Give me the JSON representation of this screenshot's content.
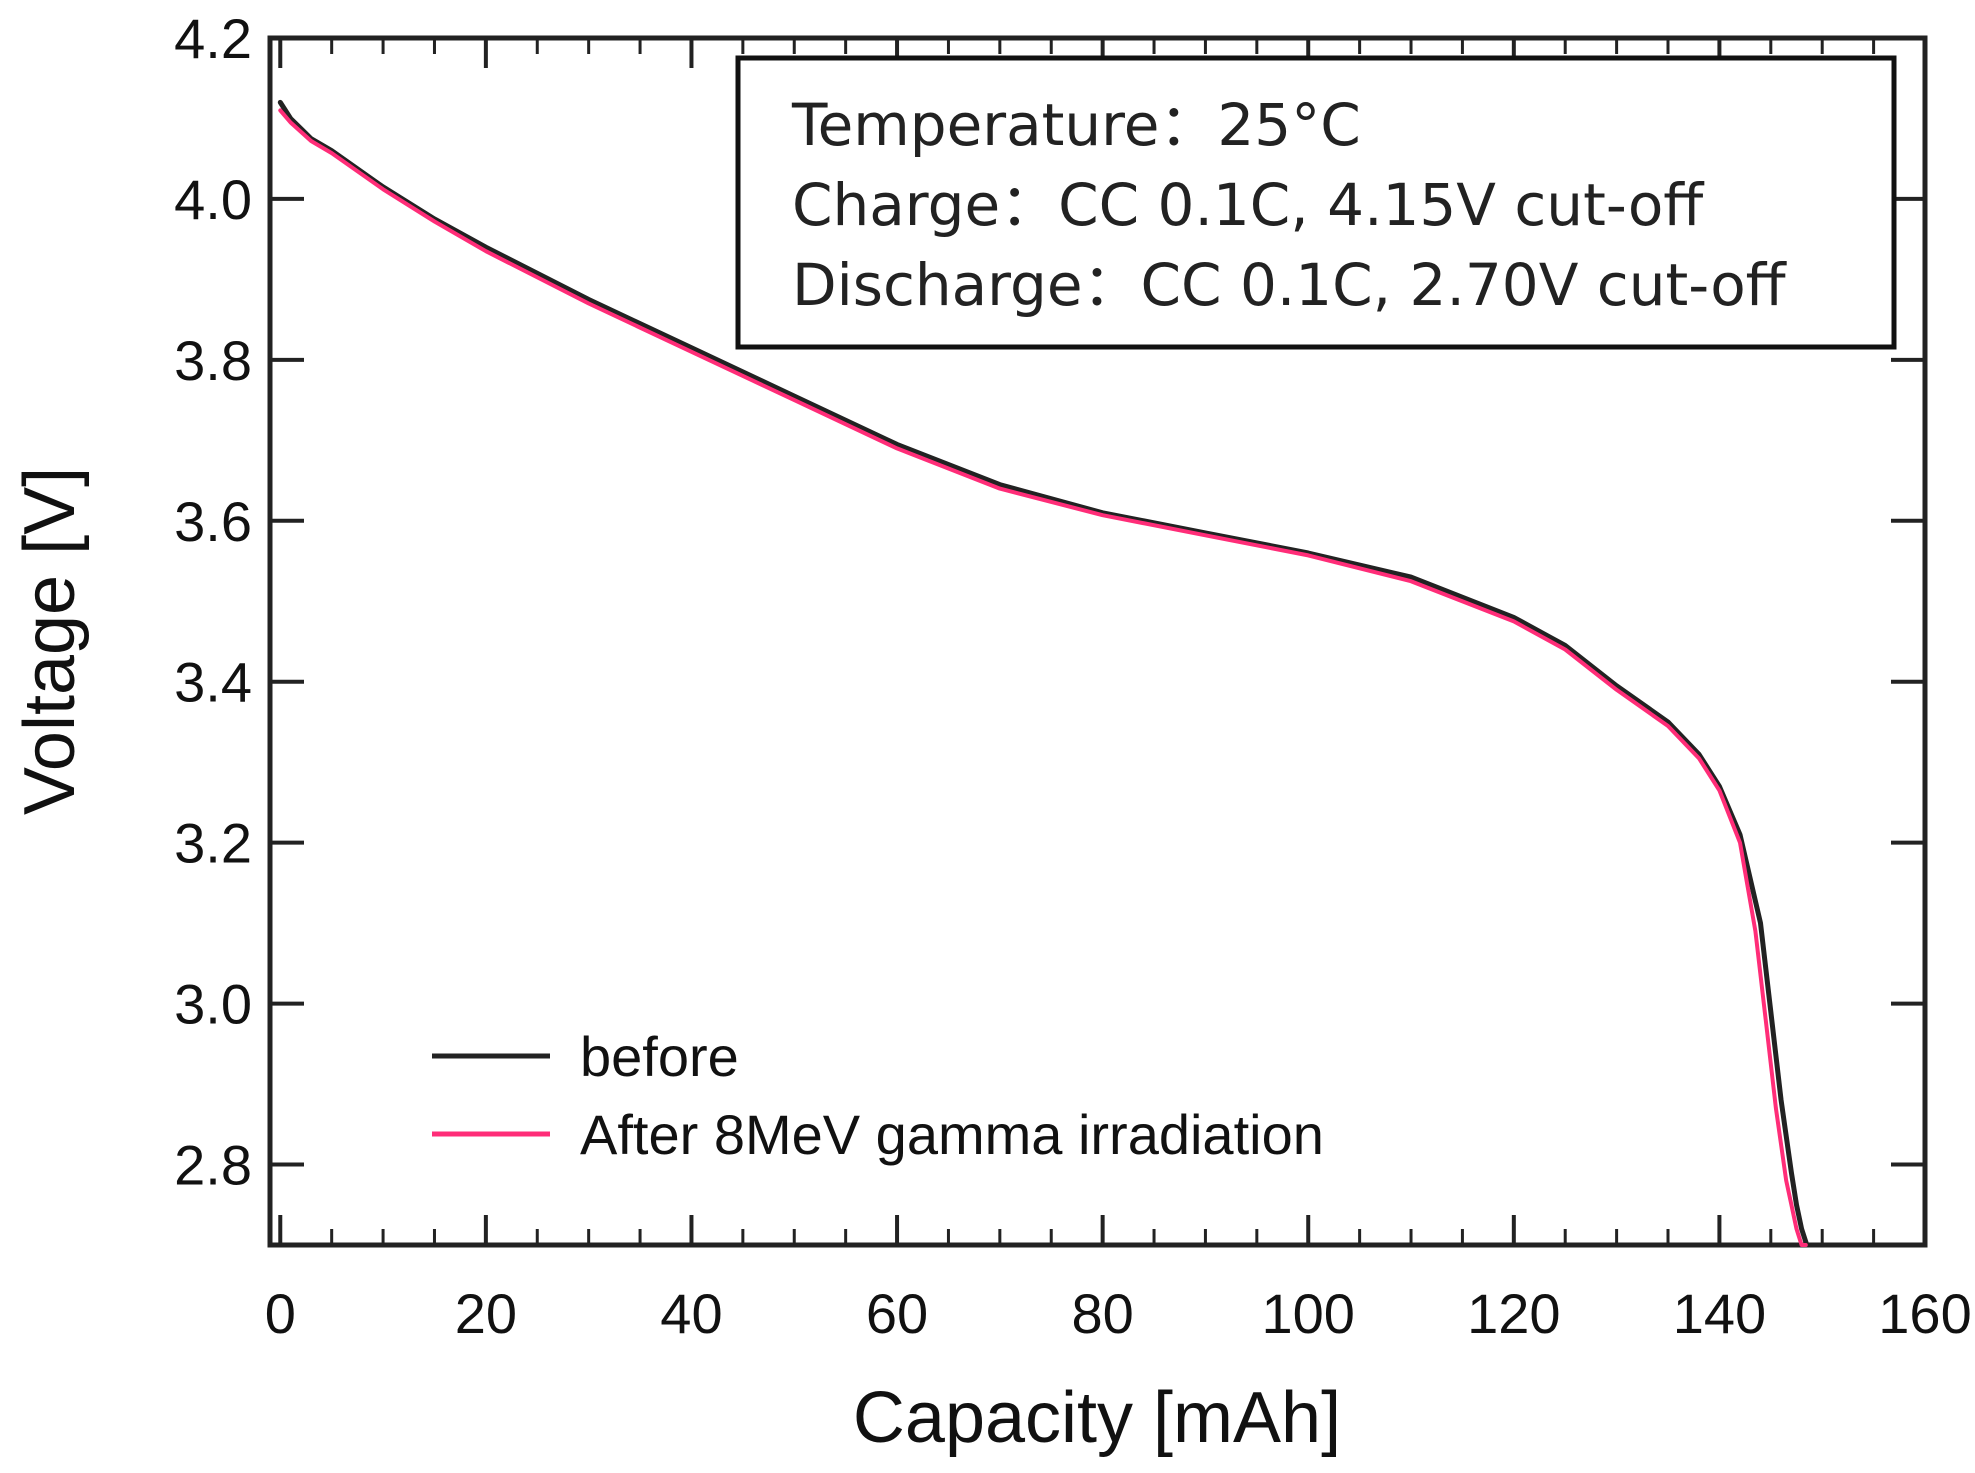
{
  "chart_data": {
    "type": "line",
    "title": "",
    "xlabel": "Capacity [mAh]",
    "ylabel": "Voltage [V]",
    "xlim": [
      -1,
      160
    ],
    "ylim": [
      2.7,
      4.2
    ],
    "xticks": [
      0,
      20,
      40,
      60,
      80,
      100,
      120,
      140,
      160
    ],
    "yticks": [
      2.8,
      3.0,
      3.2,
      3.4,
      3.6,
      3.8,
      4.0,
      4.2
    ],
    "xtick_labels": [
      "0",
      "20",
      "40",
      "60",
      "80",
      "100",
      "120",
      "140",
      "160"
    ],
    "ytick_labels": [
      "2.8",
      "3.0",
      "3.2",
      "3.4",
      "3.6",
      "3.8",
      "4.0",
      "4.2"
    ],
    "grid": false,
    "legend_position": "bottom-left",
    "annotation": {
      "lines": [
        "Temperature：25°C",
        "Charge：CC 0.1C, 4.15V cut-off",
        "Discharge：CC 0.1C, 2.70V cut-off"
      ],
      "position": "top-right"
    },
    "series": [
      {
        "name": "before",
        "color": "#222222",
        "x": [
          0,
          1,
          3,
          5,
          10,
          15,
          20,
          30,
          40,
          50,
          60,
          70,
          80,
          90,
          100,
          110,
          120,
          125,
          130,
          135,
          138,
          140,
          142,
          144,
          145,
          146,
          147,
          147.5,
          148,
          148.5,
          148.8
        ],
        "y": [
          4.12,
          4.1,
          4.075,
          4.06,
          4.015,
          3.975,
          3.94,
          3.875,
          3.815,
          3.755,
          3.695,
          3.645,
          3.61,
          3.585,
          3.56,
          3.53,
          3.48,
          3.445,
          3.395,
          3.35,
          3.31,
          3.27,
          3.21,
          3.1,
          2.99,
          2.88,
          2.79,
          2.75,
          2.72,
          2.7,
          2.7
        ]
      },
      {
        "name": "After 8MeV gamma irradiation",
        "color": "#ff2d78",
        "x": [
          0,
          1,
          3,
          5,
          10,
          15,
          20,
          30,
          40,
          50,
          60,
          70,
          80,
          90,
          100,
          110,
          120,
          125,
          130,
          135,
          138,
          140,
          142,
          143.5,
          144.5,
          145.5,
          146.5,
          147,
          147.5,
          148,
          148.4
        ],
        "y": [
          4.11,
          4.095,
          4.072,
          4.057,
          4.012,
          3.972,
          3.935,
          3.87,
          3.81,
          3.75,
          3.69,
          3.64,
          3.607,
          3.582,
          3.557,
          3.525,
          3.475,
          3.44,
          3.39,
          3.345,
          3.305,
          3.265,
          3.2,
          3.09,
          2.98,
          2.87,
          2.78,
          2.75,
          2.72,
          2.7,
          2.7
        ]
      }
    ]
  }
}
